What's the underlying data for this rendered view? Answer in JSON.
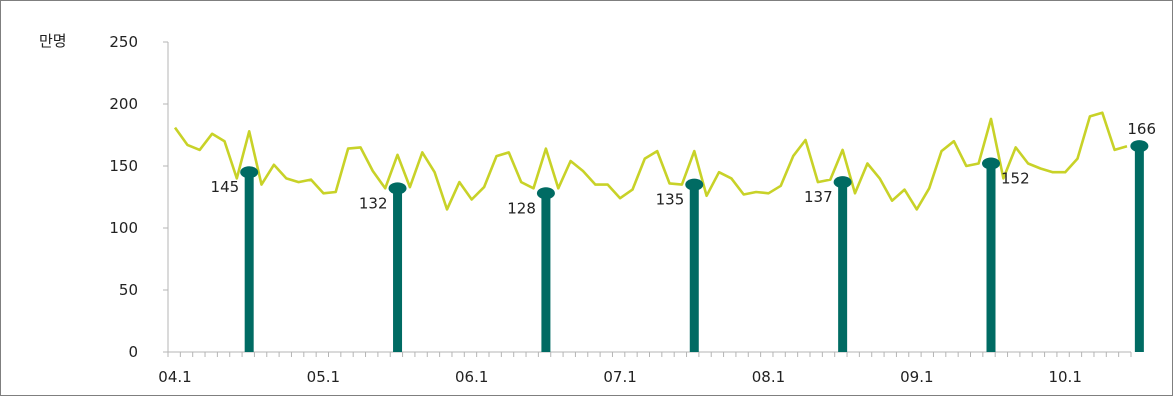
{
  "chart_data": {
    "type": "line",
    "ylabel": "만명",
    "ylim": [
      0,
      250
    ],
    "yticks": [
      0,
      50,
      100,
      150,
      200,
      250
    ],
    "xticks": [
      "04.1",
      "05.1",
      "06.1",
      "07.1",
      "08.1",
      "09.1",
      "10.1"
    ],
    "series": [
      {
        "type": "line",
        "color": "#c8d228",
        "values": [
          181,
          167,
          163,
          176,
          170,
          140,
          178,
          135,
          151,
          140,
          137,
          139,
          128,
          129,
          164,
          165,
          146,
          132,
          159,
          133,
          161,
          145,
          115,
          137,
          123,
          133,
          158,
          161,
          137,
          132,
          164,
          132,
          154,
          146,
          135,
          135,
          124,
          131,
          156,
          162,
          136,
          135,
          162,
          126,
          145,
          140,
          127,
          129,
          128,
          134,
          158,
          171,
          137,
          139,
          163,
          128,
          152,
          140,
          122,
          131,
          115,
          132,
          162,
          170,
          150,
          152,
          188,
          140,
          165,
          152,
          148,
          145,
          145,
          156,
          190,
          193,
          163,
          166
        ]
      },
      {
        "type": "bar",
        "color": "#006b63",
        "index": [
          6,
          18,
          30,
          42,
          54,
          66,
          78
        ],
        "values": [
          145,
          132,
          128,
          135,
          137,
          152,
          166
        ],
        "labels": [
          "145",
          "132",
          "128",
          "135",
          "137",
          "152",
          "166"
        ]
      }
    ]
  }
}
